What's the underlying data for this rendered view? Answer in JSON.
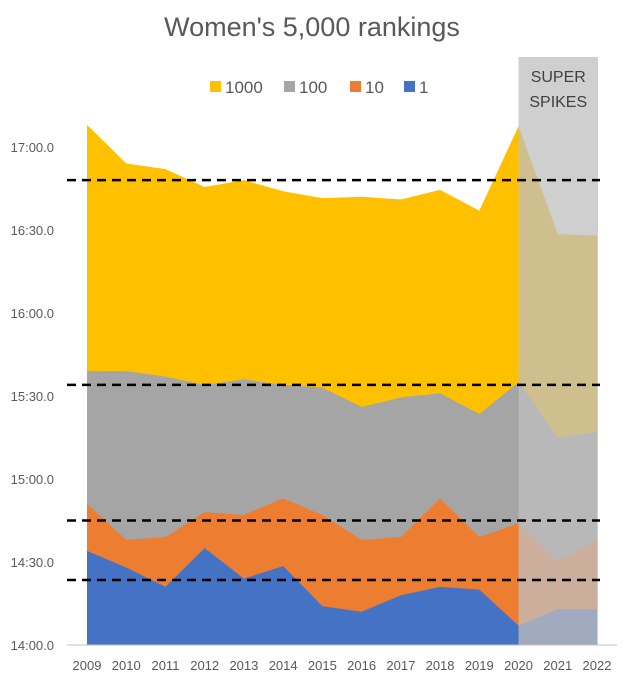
{
  "chart_data": {
    "type": "area",
    "title": "Women's 5,000 rankings",
    "xlabel": "",
    "ylabel": "",
    "value_units": "seconds (time = mm:ss)",
    "ylim": [
      840,
      1032
    ],
    "y_ticks": [
      {
        "value": 840,
        "label": "14:00.0"
      },
      {
        "value": 870,
        "label": "14:30.0"
      },
      {
        "value": 900,
        "label": "15:00.0"
      },
      {
        "value": 930,
        "label": "15:30.0"
      },
      {
        "value": 960,
        "label": "16:00.0"
      },
      {
        "value": 990,
        "label": "16:30.0"
      },
      {
        "value": 1020,
        "label": "17:00.0"
      }
    ],
    "categories": [
      "2009",
      "2010",
      "2011",
      "2012",
      "2013",
      "2014",
      "2015",
      "2016",
      "2017",
      "2018",
      "2019",
      "2020",
      "2021",
      "2022"
    ],
    "legend_position": "top",
    "series": [
      {
        "name": "1000",
        "color": "#FFC000",
        "values": [
          1028,
          1014,
          1012,
          1005.5,
          1008,
          1004,
          1001.5,
          1002,
          1001,
          1004.5,
          997,
          1027.5,
          988.5,
          988
        ]
      },
      {
        "name": "100",
        "color": "#A5A5A5",
        "values": [
          939,
          939,
          937,
          934,
          936,
          934,
          933,
          926,
          929.5,
          931,
          923.5,
          935,
          915,
          917
        ]
      },
      {
        "name": "10",
        "color": "#ED7D31",
        "values": [
          891,
          878,
          879,
          888,
          887,
          893,
          887,
          878,
          879,
          893,
          879,
          884,
          870,
          878
        ]
      },
      {
        "name": "1",
        "color": "#4472C4",
        "values": [
          874,
          868,
          861,
          875,
          864,
          868.5,
          854,
          852,
          858,
          861,
          860,
          847,
          853,
          853
        ]
      }
    ],
    "reference_lines": [
      1008,
      934,
      885,
      863.5
    ],
    "shaded_region": {
      "from": "2020",
      "to": "2022",
      "label_line1": "SUPER",
      "label_line2": "SPIKES",
      "color": "#BFBFBF"
    }
  }
}
